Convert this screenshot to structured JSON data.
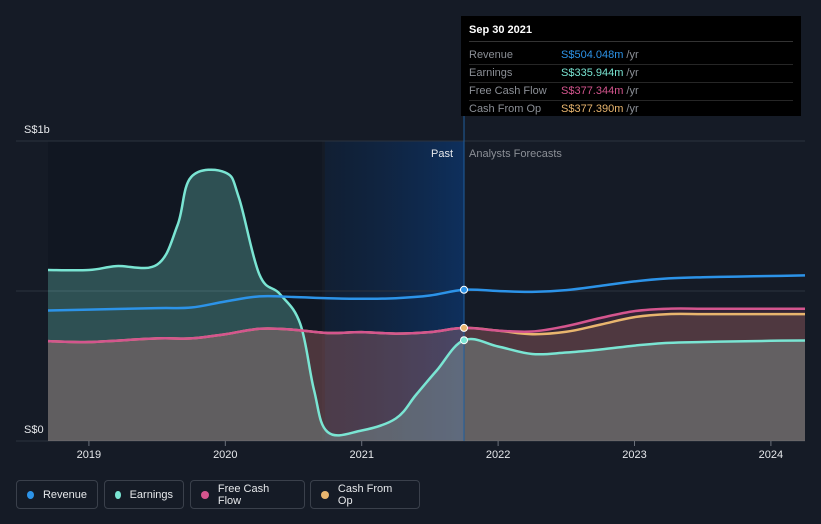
{
  "tooltip": {
    "date": "Sep 30 2021",
    "rows": [
      {
        "label": "Revenue",
        "value": "S$504.048m",
        "unit": "/yr",
        "color": "#2c93e8"
      },
      {
        "label": "Earnings",
        "value": "S$335.944m",
        "unit": "/yr",
        "color": "#7ae5d3"
      },
      {
        "label": "Free Cash Flow",
        "value": "S$377.344m",
        "unit": "/yr",
        "color": "#d4558e"
      },
      {
        "label": "Cash From Op",
        "value": "S$377.390m",
        "unit": "/yr",
        "color": "#e8b56e"
      }
    ]
  },
  "colors": {
    "background": "#151b26",
    "past_band": "#0d2a4d",
    "revenue": "#2c93e8",
    "earnings": "#7ae5d3",
    "fcf": "#d4558e",
    "cfo": "#e8b56e"
  },
  "chart_data": {
    "type": "line",
    "title": "",
    "ylabel": "",
    "y_tick_labels": [
      "S$1b",
      "S$0"
    ],
    "ylim": [
      0,
      1000
    ],
    "xlim": [
      2018.7,
      2024.25
    ],
    "x_tick_labels": [
      "2019",
      "2020",
      "2021",
      "2022",
      "2023",
      "2024"
    ],
    "x_ticks": [
      2019,
      2020,
      2021,
      2022,
      2023,
      2024
    ],
    "past_label": "Past",
    "forecast_label": "Analysts Forecasts",
    "divider_x": 2021.75,
    "highlight_start_x": 2020.73,
    "series": [
      {
        "name": "Revenue",
        "key": "revenue",
        "x": [
          2018.7,
          2019.0,
          2019.5,
          2019.75,
          2020.0,
          2020.25,
          2020.5,
          2020.75,
          2021.0,
          2021.25,
          2021.5,
          2021.75,
          2022.0,
          2022.25,
          2022.5,
          2022.75,
          2023.0,
          2023.25,
          2023.5,
          2023.75,
          2024.0,
          2024.25
        ],
        "y": [
          435,
          438,
          443,
          445,
          465,
          482,
          480,
          476,
          474,
          476,
          485,
          504,
          500,
          497,
          503,
          517,
          532,
          542,
          546,
          548,
          550,
          552
        ]
      },
      {
        "name": "Earnings",
        "key": "earnings",
        "x": [
          2018.7,
          2019.0,
          2019.2,
          2019.5,
          2019.65,
          2019.75,
          2020.0,
          2020.1,
          2020.25,
          2020.4,
          2020.55,
          2020.65,
          2020.75,
          2021.0,
          2021.25,
          2021.4,
          2021.55,
          2021.75,
          2022.0,
          2022.25,
          2022.5,
          2022.75,
          2023.0,
          2023.25,
          2023.5,
          2023.75,
          2024.0,
          2024.25
        ],
        "y": [
          570,
          570,
          583,
          588,
          720,
          880,
          895,
          810,
          555,
          490,
          390,
          170,
          30,
          35,
          75,
          155,
          235,
          336,
          315,
          290,
          295,
          305,
          318,
          327,
          330,
          332,
          334,
          335
        ]
      },
      {
        "name": "Free Cash Flow",
        "key": "fcf",
        "x": [
          2018.7,
          2019.0,
          2019.5,
          2019.75,
          2020.0,
          2020.25,
          2020.5,
          2020.75,
          2021.0,
          2021.25,
          2021.5,
          2021.75,
          2022.0,
          2022.25,
          2022.5,
          2022.75,
          2023.0,
          2023.25,
          2023.5,
          2023.75,
          2024.0,
          2024.25
        ],
        "y": [
          333,
          330,
          342,
          342,
          356,
          374,
          371,
          360,
          363,
          358,
          363,
          377,
          368,
          365,
          383,
          410,
          433,
          441,
          441,
          441,
          441,
          441
        ]
      },
      {
        "name": "Cash From Op",
        "key": "cfo",
        "x": [
          2018.7,
          2019.0,
          2019.5,
          2019.75,
          2020.0,
          2020.25,
          2020.5,
          2020.75,
          2021.0,
          2021.25,
          2021.5,
          2021.75,
          2022.0,
          2022.25,
          2022.5,
          2022.75,
          2023.0,
          2023.25,
          2023.5,
          2023.75,
          2024.0,
          2024.25
        ],
        "y": [
          333,
          330,
          342,
          342,
          356,
          374,
          371,
          360,
          363,
          358,
          363,
          377,
          368,
          356,
          364,
          388,
          413,
          423,
          423,
          423,
          423,
          423
        ]
      }
    ]
  },
  "legend": [
    {
      "label": "Revenue",
      "key": "revenue"
    },
    {
      "label": "Earnings",
      "key": "earnings"
    },
    {
      "label": "Free Cash Flow",
      "key": "fcf"
    },
    {
      "label": "Cash From Op",
      "key": "cfo"
    }
  ]
}
